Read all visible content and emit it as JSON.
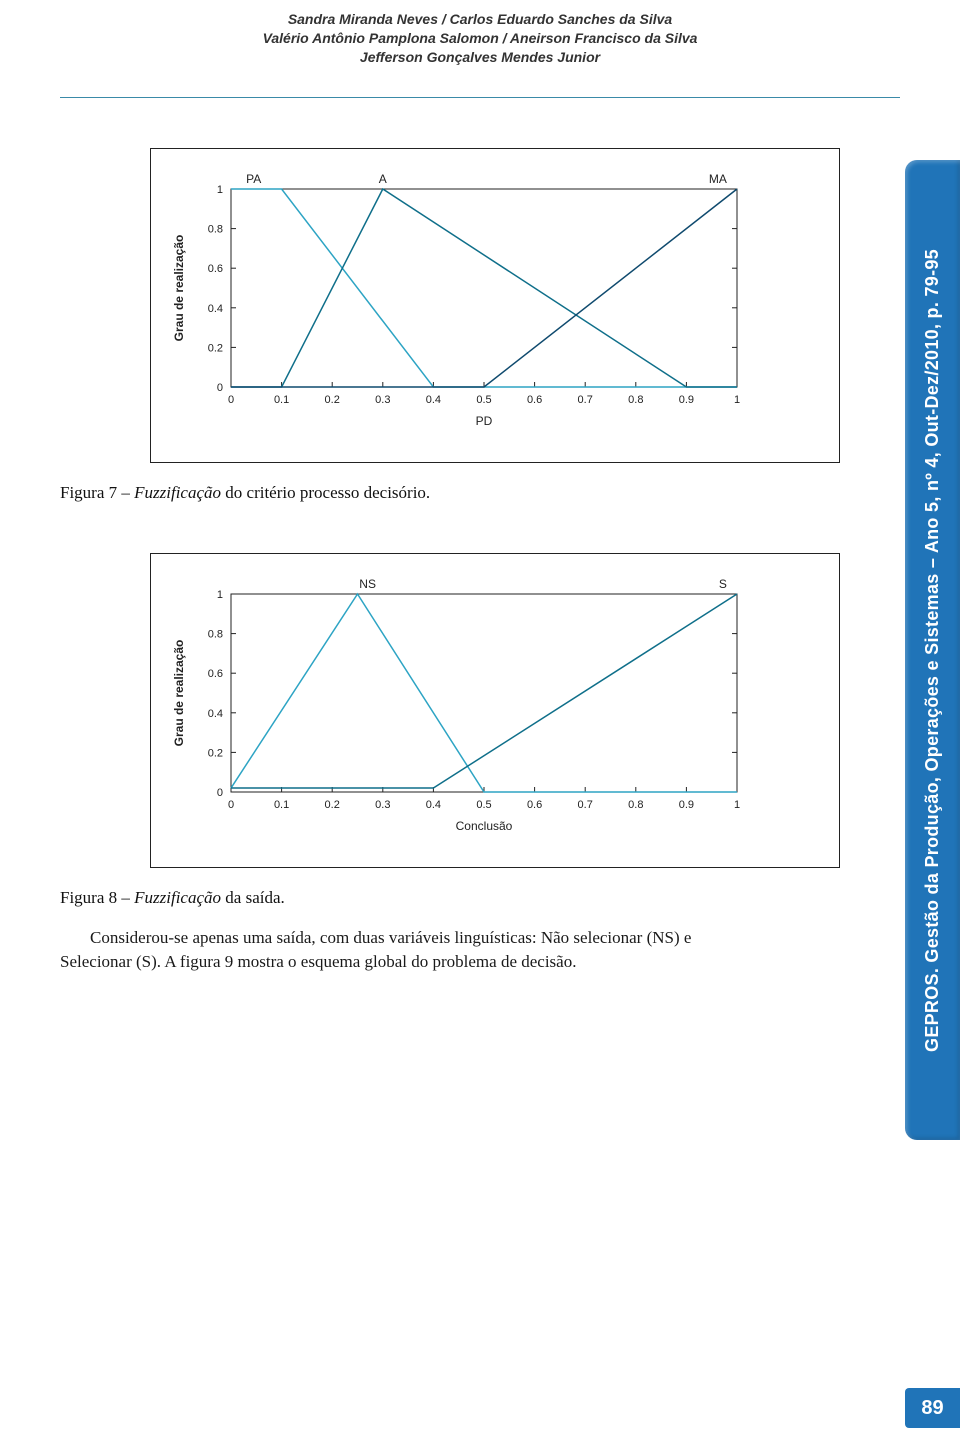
{
  "authors": [
    "Sandra Miranda Neves / Carlos Eduardo Sanches da Silva",
    "Valério Antônio Pamplona Salomon / Aneirson Francisco da Silva",
    "Jefferson Gonçalves Mendes Junior"
  ],
  "figure7": {
    "caption_lead": "Figura 7 – ",
    "caption_italic": "Fuzzificação",
    "caption_rest": " do critério processo decisório."
  },
  "figure8": {
    "caption_lead": "Figura 8 – ",
    "caption_italic": "Fuzzificação",
    "caption_rest": " da saída."
  },
  "paragraph": "Considerou-se apenas uma saída, com duas variáveis linguísticas: Não selecionar (NS) e Selecionar (S). A figura 9 mostra o esquema global do problema de decisão.",
  "sidebar_text": "GEPROS. Gestão da Produção, Operações e Sistemas – Ano 5, nº 4, Out-Dez/2010, p. 79-95",
  "page_number": "89",
  "chart1": {
    "ylabel": "Grau de realização",
    "xlabel": "PD",
    "xlim": [
      0,
      1
    ],
    "ylim": [
      0,
      1
    ],
    "xticks": [
      "0",
      "0.1",
      "0.2",
      "0.3",
      "0.4",
      "0.5",
      "0.6",
      "0.7",
      "0.8",
      "0.9",
      "1"
    ],
    "yticks": [
      "0",
      "0.2",
      "0.4",
      "0.6",
      "0.8",
      "1"
    ],
    "series_labels": {
      "PA": "PA",
      "A": "A",
      "MA": "MA"
    },
    "series": {
      "PA": {
        "points": [
          [
            0,
            1
          ],
          [
            0.1,
            1
          ],
          [
            0.4,
            0
          ],
          [
            1,
            0
          ]
        ],
        "color": "#2da4c4"
      },
      "A": {
        "points": [
          [
            0,
            0
          ],
          [
            0.1,
            0
          ],
          [
            0.3,
            1
          ],
          [
            0.9,
            0
          ],
          [
            1,
            0
          ]
        ],
        "color": "#0f6f8a"
      },
      "MA": {
        "points": [
          [
            0,
            0
          ],
          [
            0.5,
            0
          ],
          [
            0.8,
            0.6
          ],
          [
            1,
            1
          ]
        ],
        "color": "#0f4a6e"
      }
    },
    "axis_color": "#222",
    "tick_fontsize": 11,
    "label_fontsize": 12,
    "line_width": 1.5
  },
  "chart2": {
    "ylabel": "Grau de realização",
    "xlabel": "Conclusão",
    "xlim": [
      0,
      1
    ],
    "ylim": [
      0,
      1
    ],
    "xticks": [
      "0",
      "0.1",
      "0.2",
      "0.3",
      "0.4",
      "0.5",
      "0.6",
      "0.7",
      "0.8",
      "0.9",
      "1"
    ],
    "yticks": [
      "0",
      "0.2",
      "0.4",
      "0.6",
      "0.8",
      "1"
    ],
    "series_labels": {
      "NS": "NS",
      "S": "S"
    },
    "series": {
      "NS": {
        "points": [
          [
            0,
            0.02
          ],
          [
            0.25,
            1
          ],
          [
            0.5,
            0
          ],
          [
            1,
            0
          ]
        ],
        "color": "#2da4c4"
      },
      "S": {
        "points": [
          [
            0,
            0.02
          ],
          [
            0.4,
            0.02
          ],
          [
            1,
            1
          ]
        ],
        "color": "#0f6f8a"
      }
    },
    "axis_color": "#222",
    "tick_fontsize": 11,
    "label_fontsize": 12,
    "line_width": 1.5
  }
}
